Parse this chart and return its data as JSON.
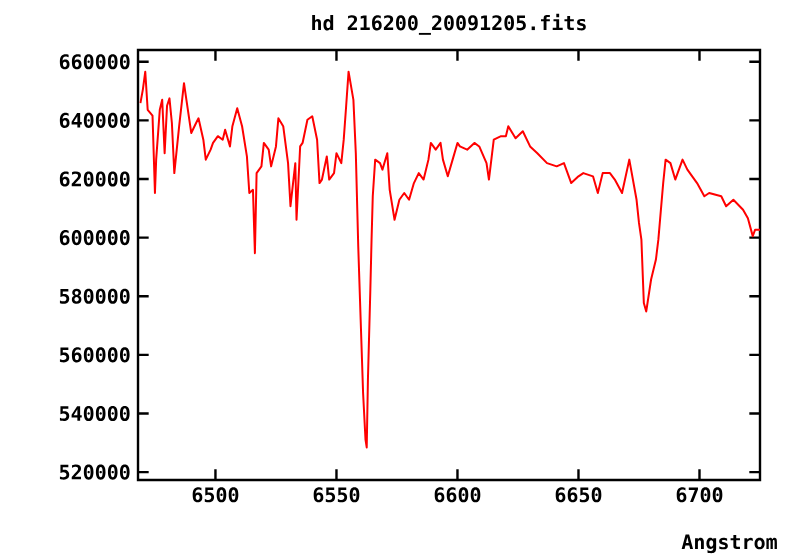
{
  "chart_data": {
    "type": "line",
    "title": "hd 216200_20091205.fits",
    "xlabel": "Angstrom",
    "xlim": [
      6468,
      6725
    ],
    "ylim": [
      517300,
      664000
    ],
    "xticks": [
      6500,
      6550,
      6600,
      6650,
      6700
    ],
    "yticks": [
      520000,
      540000,
      560000,
      580000,
      600000,
      620000,
      640000,
      660000
    ],
    "grid": false,
    "marker": "none",
    "line_style": "solid",
    "series": [
      {
        "color": "#ff0000",
        "x": [
          6469,
          6470,
          6471,
          6472,
          6474,
          6475,
          6475.5,
          6477,
          6478,
          6479,
          6480,
          6481,
          6482,
          6483,
          6485,
          6487,
          6488,
          6490,
          6492,
          6493,
          6495,
          6496,
          6498,
          6499,
          6501,
          6503,
          6504,
          6506,
          6507,
          6509,
          6511,
          6513,
          6514,
          6515.5,
          6516,
          6516.3,
          6517,
          6519,
          6520,
          6522,
          6523,
          6525,
          6526,
          6528,
          6530,
          6531,
          6533,
          6533.5,
          6535,
          6536,
          6538,
          6540,
          6542,
          6543,
          6544,
          6546,
          6547,
          6549,
          6550,
          6552,
          6553,
          6554,
          6555,
          6557,
          6558,
          6559,
          6560,
          6561,
          6562,
          6562.5,
          6563,
          6564,
          6564.5,
          6565,
          6566,
          6568,
          6569,
          6571,
          6572,
          6574,
          6576,
          6578,
          6580,
          6582,
          6584,
          6586,
          6588,
          6589,
          6591,
          6593,
          6594,
          6596,
          6598,
          6600,
          6601,
          6604,
          6607,
          6609,
          6612,
          6613,
          6615,
          6618,
          6620,
          6621,
          6624,
          6627,
          6630,
          6633,
          6637,
          6641,
          6644,
          6647,
          6650,
          6652,
          6656,
          6658,
          6660,
          6663,
          6665,
          6668,
          6671,
          6674,
          6675,
          6676,
          6677,
          6678,
          6680,
          6682,
          6683,
          6685,
          6686,
          6688,
          6690,
          6693,
          6695,
          6699,
          6702,
          6704,
          6709,
          6711,
          6714,
          6718,
          6720,
          6722,
          6723,
          6725
        ],
        "values": [
          645900,
          650500,
          656600,
          643600,
          641600,
          615200,
          626600,
          643600,
          647000,
          628800,
          645000,
          647500,
          639100,
          622000,
          638000,
          652700,
          647000,
          635700,
          639100,
          640700,
          633400,
          626600,
          630000,
          632300,
          634600,
          633400,
          636800,
          631100,
          638000,
          644100,
          638000,
          627700,
          615200,
          616300,
          602700,
          594700,
          622000,
          624300,
          632300,
          630000,
          624300,
          631100,
          640700,
          638000,
          625400,
          610700,
          625400,
          606100,
          631100,
          632300,
          640200,
          641400,
          633400,
          618600,
          619800,
          627700,
          619800,
          622000,
          628800,
          625400,
          633400,
          644800,
          656600,
          647000,
          628800,
          597000,
          572000,
          547000,
          531100,
          528400,
          551600,
          582200,
          599300,
          614100,
          626600,
          625400,
          623200,
          628800,
          616300,
          606100,
          612900,
          615200,
          612900,
          618600,
          622000,
          619800,
          626600,
          632300,
          630000,
          632300,
          626600,
          620900,
          626600,
          632300,
          631100,
          630000,
          632300,
          631100,
          625400,
          619800,
          633400,
          634600,
          634600,
          638000,
          633900,
          636300,
          631100,
          628800,
          625400,
          624300,
          625400,
          618600,
          620900,
          622000,
          620900,
          615200,
          622000,
          622000,
          619800,
          615200,
          626600,
          612900,
          605000,
          599300,
          577700,
          574800,
          585700,
          592500,
          599300,
          618600,
          626600,
          625400,
          619800,
          626600,
          623200,
          618600,
          614100,
          615200,
          614100,
          610700,
          612900,
          609500,
          606600,
          600500,
          602700,
          602700
        ]
      }
    ]
  }
}
